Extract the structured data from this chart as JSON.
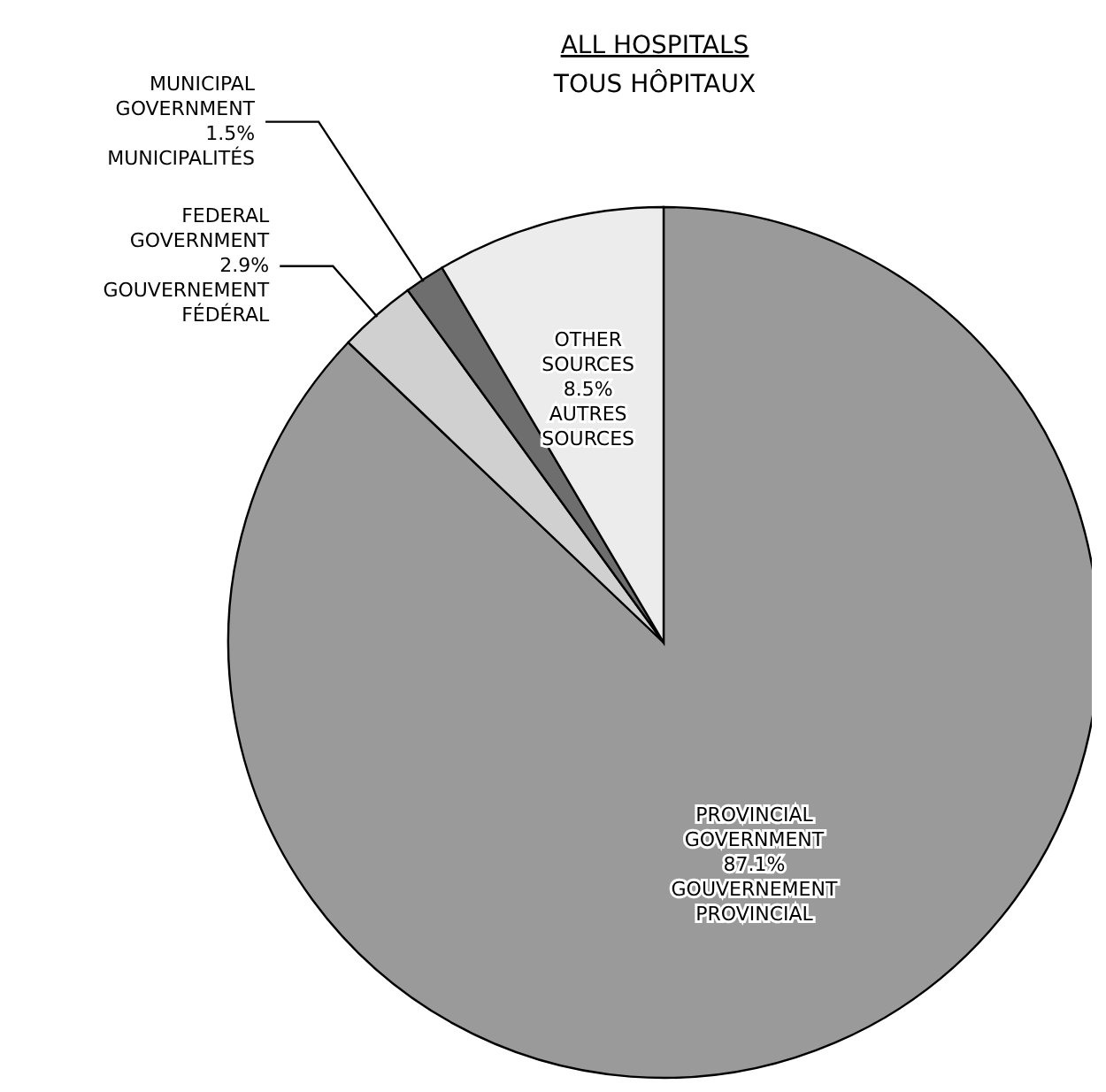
{
  "chart_data": {
    "type": "pie",
    "title": "ALL HOSPITALS",
    "subtitle": "TOUS HÔPITAUX",
    "categories": [
      "PROVINCIAL\nGOVERNMENT\n\nGOUVERNEMENT\nPROVINCIAL",
      "FEDERAL\nGOVERNMENT\n\nGOUVERNEMENT\nFÉDÉRAL",
      "MUNICIPAL\nGOVERNMENT\n\nMUNICIPALITÉS",
      "OTHER\nSOURCES\n\nAUTRES\nSOURCES"
    ],
    "values": [
      87.1,
      2.9,
      1.5,
      8.5
    ],
    "colors": [
      "#9a9a9a",
      "#d0d0d0",
      "#6e6e6e",
      "#ececec"
    ],
    "value_labels": [
      "87.1%",
      "2.9%",
      "1.5%",
      "8.5%"
    ]
  }
}
